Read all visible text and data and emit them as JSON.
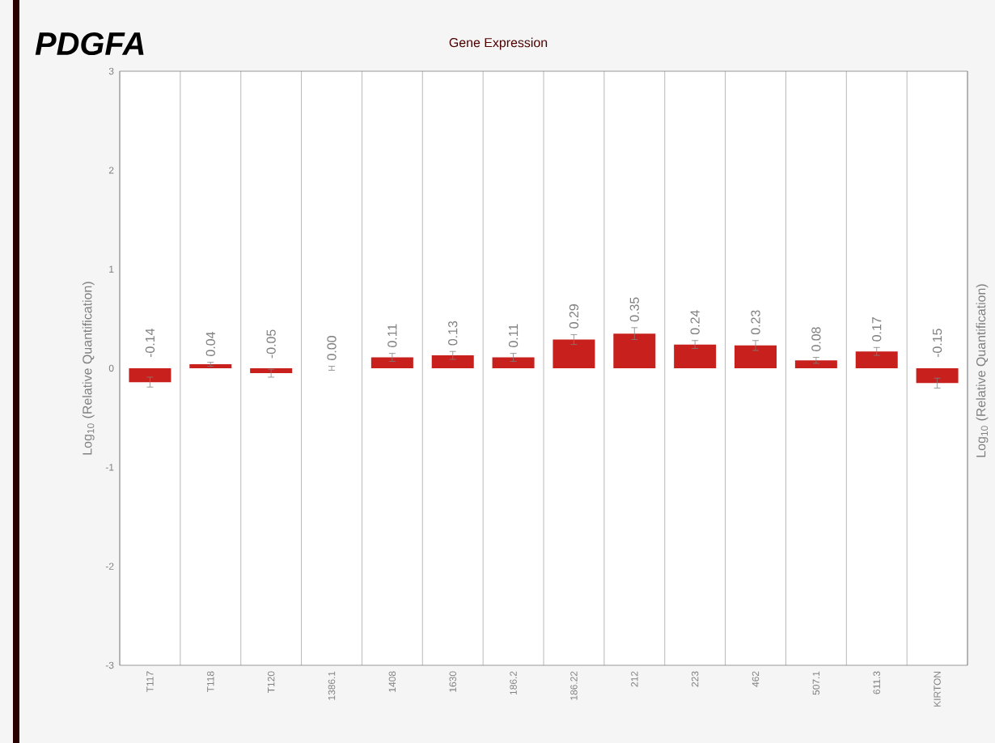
{
  "chart_data": {
    "type": "bar",
    "title": "PDGFA",
    "subtitle": "Gene Expression",
    "ylabel": "Log$_{10}$ (Relative Quantification)",
    "y2label": "Log$_{10}$ (Relative Quantification)",
    "categories": [
      "T117",
      "T118",
      "T120",
      "1386.1",
      "1408",
      "1630",
      "186.2",
      "186.22",
      "212",
      "223",
      "462",
      "507.1",
      "611.3",
      "KIRTON"
    ],
    "values": [
      -0.14,
      0.04,
      -0.05,
      0.0,
      0.11,
      0.13,
      0.11,
      0.29,
      0.35,
      0.24,
      0.23,
      0.08,
      0.17,
      -0.15
    ],
    "errors": [
      0.05,
      0.02,
      0.04,
      0.02,
      0.04,
      0.04,
      0.04,
      0.05,
      0.06,
      0.04,
      0.05,
      0.03,
      0.04,
      0.05
    ],
    "value_labels": [
      "-0.14",
      "0.04",
      "-0.05",
      "0.00",
      "0.11",
      "0.13",
      "0.11",
      "0.29",
      "0.35",
      "0.24",
      "0.23",
      "0.08",
      "0.17",
      "-0.15"
    ],
    "color": "#c8201c",
    "ylim": [
      -3,
      3
    ],
    "yticks": [
      -3,
      -2,
      -1,
      0,
      1,
      2,
      3
    ],
    "grid": "x"
  }
}
